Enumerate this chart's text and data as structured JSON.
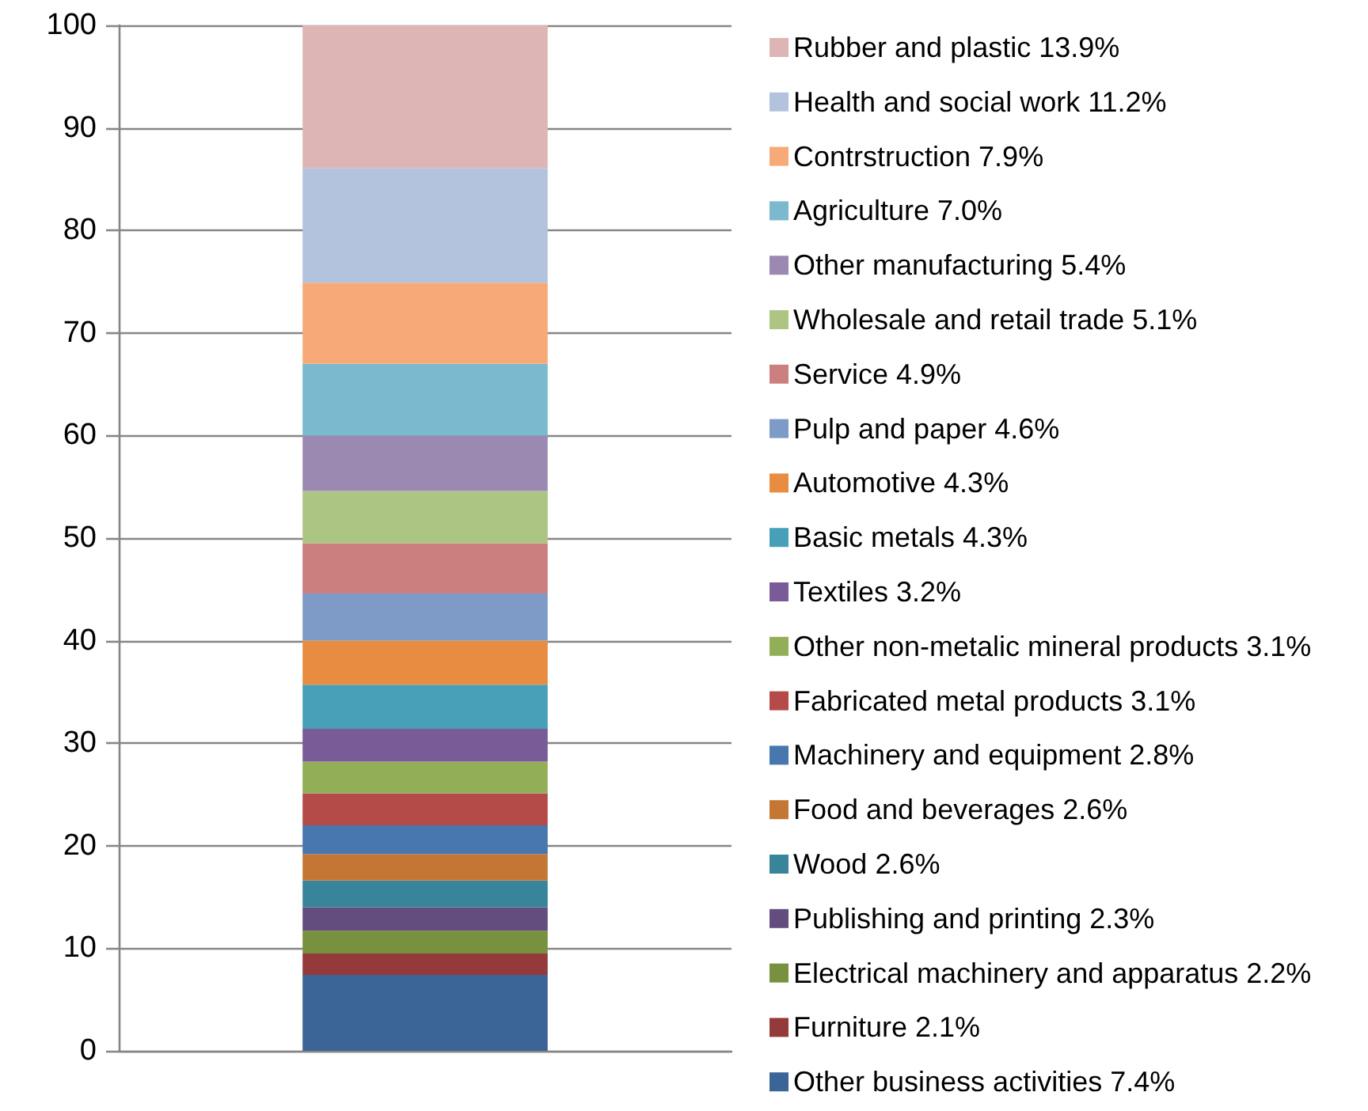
{
  "chart_data": {
    "type": "bar",
    "stacked": true,
    "categories": [
      null
    ],
    "series": [
      {
        "name": "Other business activities 7.4%",
        "color": "#3c6597",
        "values": [
          7.4
        ]
      },
      {
        "name": "Furniture 2.1%",
        "color": "#943a3b",
        "values": [
          2.1
        ]
      },
      {
        "name": "Electrical machinery and apparatus 2.2%",
        "color": "#77913f",
        "values": [
          2.2
        ]
      },
      {
        "name": "Publishing and printing 2.3%",
        "color": "#624d7e",
        "values": [
          2.3
        ]
      },
      {
        "name": "Wood 2.6%",
        "color": "#38849a",
        "values": [
          2.6
        ]
      },
      {
        "name": "Food and beverages 2.6%",
        "color": "#c47734",
        "values": [
          2.6
        ]
      },
      {
        "name": "Machinery and equipment 2.8%",
        "color": "#4877b0",
        "values": [
          2.8
        ]
      },
      {
        "name": "Fabricated metal products 3.1%",
        "color": "#b44b49",
        "values": [
          3.1
        ]
      },
      {
        "name": "Other non-metalic mineral products 3.1%",
        "color": "#92ae56",
        "values": [
          3.1
        ]
      },
      {
        "name": "Textiles 3.2%",
        "color": "#795c97",
        "values": [
          3.2
        ]
      },
      {
        "name": "Basic metals 4.3%",
        "color": "#47a0b8",
        "values": [
          4.3
        ]
      },
      {
        "name": "Automotive 4.3%",
        "color": "#e88c42",
        "values": [
          4.3
        ]
      },
      {
        "name": "Pulp and paper 4.6%",
        "color": "#7e9bc8",
        "values": [
          4.6
        ]
      },
      {
        "name": "Service 4.9%",
        "color": "#cb7f7e",
        "values": [
          4.9
        ]
      },
      {
        "name": "Wholesale and retail trade 5.1%",
        "color": "#adc583",
        "values": [
          5.1
        ]
      },
      {
        "name": "Other manufacturing 5.4%",
        "color": "#9b89b2",
        "values": [
          5.4
        ]
      },
      {
        "name": "Agriculture 7.0%",
        "color": "#7bb9ce",
        "values": [
          7.0
        ]
      },
      {
        "name": "Contrstruction 7.9%",
        "color": "#f7aa78",
        "values": [
          7.9
        ]
      },
      {
        "name": "Health and social work 11.2%",
        "color": "#b4c3dd",
        "values": [
          11.2
        ]
      },
      {
        "name": "Rubber and plastic 13.9%",
        "color": "#deb5b5",
        "values": [
          13.9
        ]
      }
    ],
    "ylim": [
      0,
      100
    ],
    "yticks": [
      0,
      10,
      20,
      30,
      40,
      50,
      60,
      70,
      80,
      90,
      100
    ],
    "grid": "y",
    "legend": "right"
  }
}
